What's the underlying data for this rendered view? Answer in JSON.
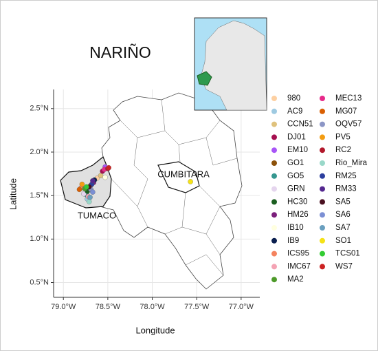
{
  "chart_data": {
    "type": "map",
    "title": "NARIÑO",
    "x_label": "Longitude",
    "y_label": "Latitude",
    "places": [
      "CUMBITARA",
      "TUMACO"
    ],
    "xlim": [
      -79.11,
      -76.79
    ],
    "ylim": [
      0.33,
      2.72
    ],
    "xticks": [
      {
        "value": -79.0,
        "label": "79.0°W"
      },
      {
        "value": -78.5,
        "label": "78.5°W"
      },
      {
        "value": -78.0,
        "label": "78.0°W"
      },
      {
        "value": -77.5,
        "label": "77.5°W"
      },
      {
        "value": -77.0,
        "label": "77.0°W"
      }
    ],
    "yticks": [
      {
        "value": 0.5,
        "label": "0.5°N"
      },
      {
        "value": 1.0,
        "label": "1.0°N"
      },
      {
        "value": 1.5,
        "label": "1.5°N"
      },
      {
        "value": 2.0,
        "label": "2.0°N"
      },
      {
        "value": 2.5,
        "label": "2.5°N"
      }
    ],
    "grid": true,
    "series": [
      {
        "name": "980",
        "color": "#fdd0a2",
        "x": -78.62,
        "y": 1.7
      },
      {
        "name": "AC9",
        "color": "#9ecae1",
        "x": -78.73,
        "y": 1.46
      },
      {
        "name": "CCN51",
        "color": "#dfc27d",
        "x": -78.58,
        "y": 1.73
      },
      {
        "name": "DJ01",
        "color": "#a50f4f",
        "x": -78.56,
        "y": 1.78
      },
      {
        "name": "EM10",
        "color": "#a855f7",
        "x": -78.53,
        "y": 1.83
      },
      {
        "name": "GO1",
        "color": "#8c510a",
        "x": -78.69,
        "y": 1.62
      },
      {
        "name": "GO5",
        "color": "#35978f",
        "x": -78.74,
        "y": 1.51
      },
      {
        "name": "GRN",
        "color": "#e5d5ee",
        "x": -78.77,
        "y": 1.52
      },
      {
        "name": "HC30",
        "color": "#1b5e20",
        "x": -78.73,
        "y": 1.55
      },
      {
        "name": "HM26",
        "color": "#7b1f7b",
        "x": -78.66,
        "y": 1.65
      },
      {
        "name": "IB10",
        "color": "#ffffe0",
        "x": -78.53,
        "y": 1.71
      },
      {
        "name": "IB9",
        "color": "#0b1f4f",
        "x": -78.65,
        "y": 1.68
      },
      {
        "name": "ICS95",
        "color": "#f4835f",
        "x": -78.8,
        "y": 1.59
      },
      {
        "name": "IMC67",
        "color": "#f4a3b4",
        "x": -78.72,
        "y": 1.49
      },
      {
        "name": "MA2",
        "color": "#4d9a2a",
        "x": -78.76,
        "y": 1.58
      },
      {
        "name": "MEC13",
        "color": "#e7298a",
        "x": -78.54,
        "y": 1.8
      },
      {
        "name": "MG07",
        "color": "#d95f02",
        "x": -78.82,
        "y": 1.57
      },
      {
        "name": "OQV57",
        "color": "#8c96c6",
        "x": -78.69,
        "y": 1.57
      },
      {
        "name": "PV5",
        "color": "#f39c12",
        "x": -78.79,
        "y": 1.63
      },
      {
        "name": "RC2",
        "color": "#b2182b",
        "x": -78.5,
        "y": 1.81
      },
      {
        "name": "Rio_Mira",
        "color": "#99d8c9",
        "x": -78.71,
        "y": 1.43
      },
      {
        "name": "RM25",
        "color": "#2c3e9e",
        "x": -78.68,
        "y": 1.63
      },
      {
        "name": "RM33",
        "color": "#54278f",
        "x": -78.67,
        "y": 1.67
      },
      {
        "name": "SA5",
        "color": "#4a1020",
        "x": -78.71,
        "y": 1.6
      },
      {
        "name": "SA6",
        "color": "#7b8fd4",
        "x": -78.67,
        "y": 1.54
      },
      {
        "name": "SA7",
        "color": "#6a9fbf",
        "x": -78.7,
        "y": 1.48
      },
      {
        "name": "SO1",
        "color": "#f5e216",
        "x": -77.57,
        "y": 1.66
      },
      {
        "name": "TCS01",
        "color": "#33cc33",
        "x": -78.74,
        "y": 1.6
      },
      {
        "name": "WS7",
        "color": "#cc2222",
        "x": -78.49,
        "y": 1.82
      }
    ]
  }
}
